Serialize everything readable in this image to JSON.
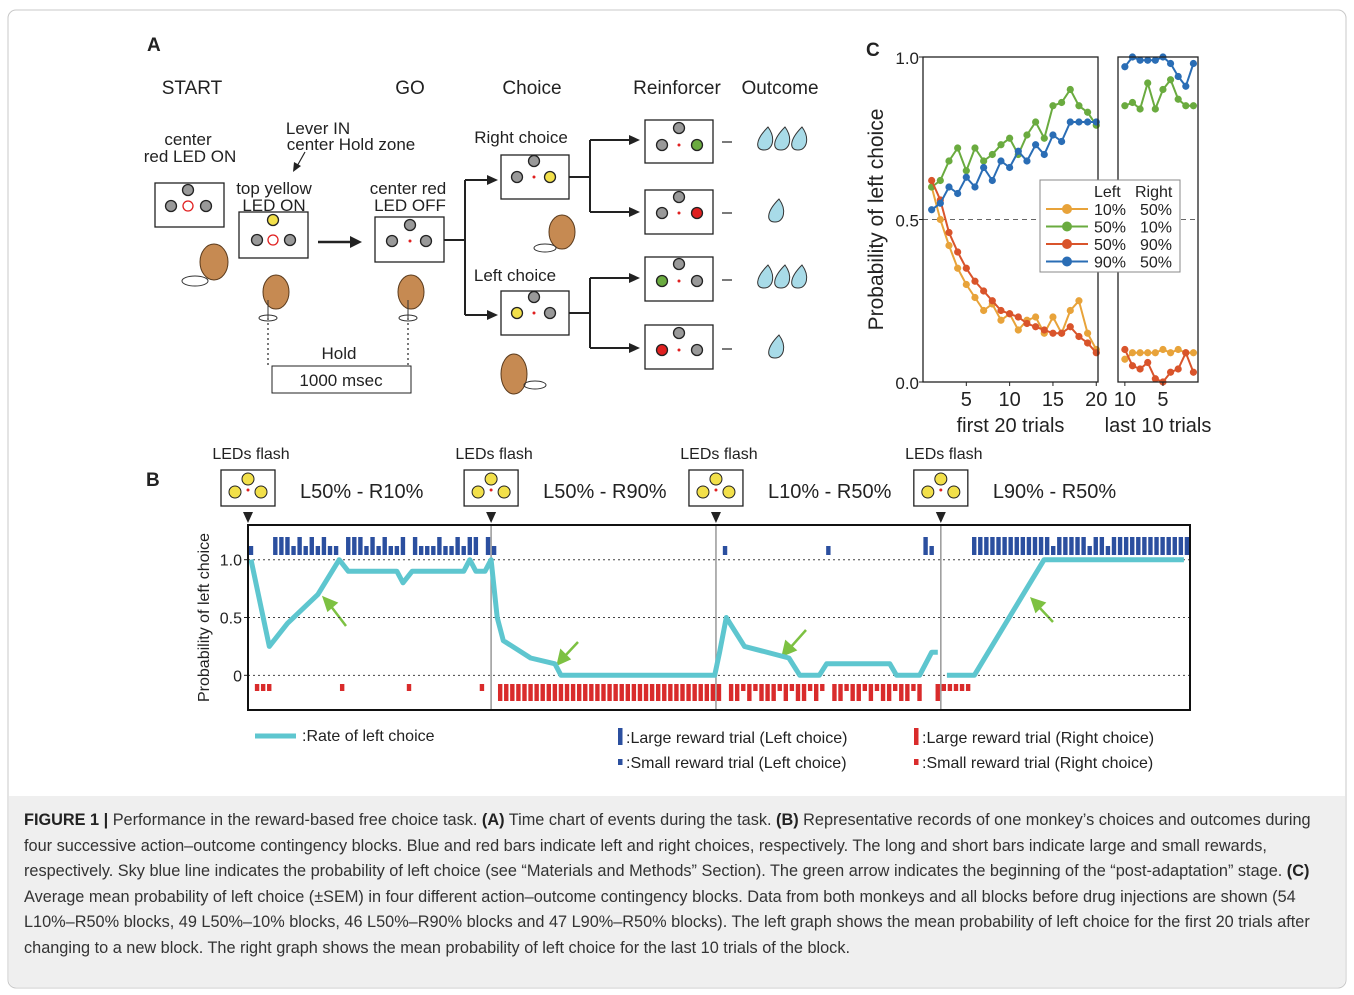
{
  "panel_a": {
    "label": "A",
    "stages": [
      "START",
      "GO",
      "Choice",
      "Reinforcer",
      "Outcome"
    ],
    "start_led": [
      "center",
      "red LED ON"
    ],
    "lever": [
      "Lever IN",
      "center Hold zone"
    ],
    "top_led": [
      "top yellow",
      "LED ON"
    ],
    "center_off": [
      "center red",
      "LED OFF"
    ],
    "right_choice": "Right choice",
    "left_choice": "Left choice",
    "hold": "Hold",
    "hold_time": "1000 msec"
  },
  "panel_b": {
    "type": "line",
    "label": "B",
    "ylabel": "Probability of left choice",
    "xlim": [
      0,
      155
    ],
    "ylim": [
      -0.3,
      1.3
    ],
    "yticks": [
      0,
      0.5,
      {
        "value": 1,
        "label": "1.0"
      }
    ],
    "grid": true,
    "blocks": [
      {
        "start": 0,
        "marker": "LEDs flash",
        "label": "L50% - R10%"
      },
      {
        "start": 40,
        "marker": "LEDs flash",
        "label": "L50% - R90%"
      },
      {
        "start": 77,
        "marker": "LEDs flash",
        "label": "L10% - R50%"
      },
      {
        "start": 114,
        "marker": "LEDs flash",
        "label": "L90% - R50%"
      }
    ],
    "series": [
      {
        "name": ":Rate of left choice",
        "color": "#5ec6cf",
        "x": [
          0.5,
          3.5,
          6.5,
          11.5,
          15,
          16.5,
          24.5,
          25.5,
          27,
          35.5,
          36.5,
          37.5,
          39,
          40,
          41,
          42,
          46.5,
          50.5,
          51.5,
          76.8,
          77.6,
          78.7,
          81.7,
          89,
          90.8,
          94,
          95.2,
          105.6,
          106.7,
          110.5,
          112.5,
          113.5,
          null,
          115,
          119.5,
          131,
          154
        ],
        "values": [
          1,
          0.25,
          0.45,
          0.7,
          1,
          0.9,
          0.9,
          0.8,
          0.9,
          0.9,
          1,
          0.9,
          0.9,
          1,
          0.5,
          0.3,
          0.15,
          0.1,
          0,
          0,
          0.2,
          0.5,
          0.25,
          0.15,
          0,
          0,
          0.1,
          0.1,
          0,
          0,
          0.2,
          0.2,
          null,
          0,
          0,
          1,
          1
        ]
      }
    ],
    "trial_series": [
      {
        "name": ":Large reward trial (Left choice)",
        "color": "#2b4f9f",
        "x": [
          4,
          5,
          6,
          8,
          10,
          12,
          16,
          17,
          18,
          20,
          22,
          25,
          27,
          31,
          34,
          36,
          37,
          39,
          111,
          119,
          120,
          121,
          122,
          123,
          124,
          125,
          126,
          127,
          128,
          129,
          130,
          131,
          133,
          134,
          135,
          136,
          137,
          139,
          140,
          142,
          143,
          144,
          145,
          146,
          147,
          148,
          149,
          150,
          151,
          152,
          153,
          154
        ]
      },
      {
        "name": ":Small reward trial (Left choice)",
        "color": "#2b4f9f",
        "x": [
          0,
          7,
          9,
          11,
          13,
          14,
          19,
          21,
          23,
          24,
          28,
          29,
          30,
          32,
          33,
          35,
          40,
          78,
          95,
          112,
          132,
          138,
          141
        ]
      },
      {
        "name": ":Large reward trial (Right choice)",
        "color": "#d92b2b",
        "x": [
          41,
          42,
          43,
          44,
          45,
          46,
          47,
          48,
          49,
          50,
          51,
          52,
          53,
          54,
          55,
          56,
          57,
          58,
          59,
          60,
          61,
          62,
          63,
          64,
          65,
          66,
          67,
          68,
          69,
          70,
          71,
          72,
          73,
          74,
          75,
          76,
          77,
          79,
          80,
          82,
          84,
          85,
          86,
          88,
          90,
          91,
          93,
          96,
          97,
          99,
          100,
          102,
          104,
          105,
          107,
          108,
          110,
          113
        ]
      },
      {
        "name": ":Small reward trial (Right choice)",
        "color": "#d92b2b",
        "x": [
          1,
          2,
          3,
          15,
          26,
          38,
          81,
          83,
          87,
          89,
          92,
          94,
          98,
          101,
          103,
          106,
          109,
          114,
          115,
          116,
          117,
          118
        ]
      }
    ]
  },
  "panel_c": {
    "type": "line",
    "label": "C",
    "ylabel": "Probability of left choice",
    "ylim": [
      0,
      1
    ],
    "yticks": [
      {
        "value": 0,
        "label": "0.0"
      },
      {
        "value": 0.5,
        "label": "0.5"
      },
      {
        "value": 1,
        "label": "1.0"
      }
    ],
    "hline": 0.5,
    "xlabel": "first 20 trials",
    "xlim": [
      0,
      20.2
    ],
    "xticks": [
      5,
      10,
      15,
      20
    ],
    "x": [
      1,
      2,
      3,
      4,
      5,
      6,
      7,
      8,
      9,
      10,
      11,
      12,
      13,
      14,
      15,
      16,
      17,
      18,
      19,
      20
    ],
    "xlabel_last": "last 10 trials",
    "xlim_last": [
      10.9,
      0.4
    ],
    "xticks_last": [
      10,
      5
    ],
    "x_last": [
      10,
      9,
      8,
      7,
      6,
      5,
      4,
      3,
      2,
      1
    ],
    "legend_header": [
      "Left",
      "Right"
    ],
    "series": [
      {
        "left": "10%",
        "right": "50%",
        "color": "#e8a33a",
        "values": [
          0.6,
          0.5,
          0.42,
          0.35,
          0.3,
          0.26,
          0.22,
          0.24,
          0.19,
          0.21,
          0.16,
          0.19,
          0.2,
          0.15,
          0.2,
          0.15,
          0.22,
          0.25,
          0.15,
          0.1
        ],
        "values_last": [
          0.07,
          0.09,
          0.09,
          0.09,
          0.09,
          0.1,
          0.09,
          0.1,
          0.09,
          0.09
        ]
      },
      {
        "left": "50%",
        "right": "10%",
        "color": "#6aab3f",
        "values": [
          0.6,
          0.62,
          0.68,
          0.72,
          0.65,
          0.72,
          0.68,
          0.7,
          0.73,
          0.75,
          0.7,
          0.76,
          0.8,
          0.75,
          0.85,
          0.86,
          0.9,
          0.85,
          0.83,
          0.79
        ],
        "values_last": [
          0.85,
          0.86,
          0.84,
          0.92,
          0.84,
          0.9,
          0.93,
          0.87,
          0.85,
          0.85
        ]
      },
      {
        "left": "50%",
        "right": "90%",
        "color": "#d9542b",
        "values": [
          0.62,
          0.56,
          0.46,
          0.4,
          0.35,
          0.31,
          0.28,
          0.25,
          0.22,
          0.21,
          0.2,
          0.18,
          0.17,
          0.16,
          0.15,
          0.15,
          0.17,
          0.14,
          0.12,
          0.09
        ],
        "values_last": [
          0.1,
          0.05,
          0.04,
          0.06,
          0.01,
          0,
          0.03,
          0.04,
          0.09,
          0.03
        ]
      },
      {
        "left": "90%",
        "right": "50%",
        "color": "#2a6db5",
        "values": [
          0.53,
          0.55,
          0.6,
          0.58,
          0.63,
          0.6,
          0.66,
          0.62,
          0.68,
          0.66,
          0.71,
          0.68,
          0.73,
          0.7,
          0.76,
          0.74,
          0.8,
          0.8,
          0.8,
          0.8
        ],
        "values_last": [
          0.97,
          1,
          0.99,
          0.99,
          0.99,
          1,
          0.98,
          0.94,
          0.91,
          0.98
        ]
      }
    ]
  },
  "caption": {
    "segments": [
      "FIGURE 1 |",
      " Performance in the reward-based free choice task. ",
      "(A)",
      " Time chart of events during the task. ",
      "(B)",
      " Representative records of one monkey’s choices and outcomes during four successive action–outcome contingency blocks. Blue and red bars indicate left and right choices, respectively. The long and short bars indicate large and small rewards, respectively. Sky blue line indicates the probability of left choice (see “Materials and Methods” Section). The green arrow indicates the beginning of the “post-adaptation” stage. ",
      "(C)",
      " Average mean probability of left choice (±SEM) in four different action–outcome contingency blocks. Data from both monkeys and all blocks before drug injections are shown (54 L10%–R50% blocks, 49 L50%–10% blocks, 46 L50%–R90% blocks and 47 L90%–R50% blocks). The left graph shows the mean probability of left choice for the first 20 trials after changing to a new block. The right graph shows the mean probability of left choice for the last 10 trials of the block."
    ]
  }
}
